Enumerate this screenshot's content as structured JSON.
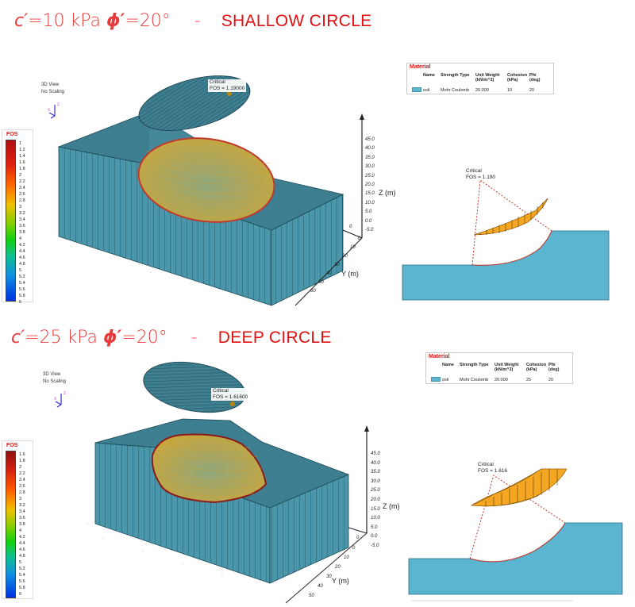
{
  "panels": [
    {
      "id": "shallow",
      "heading": {
        "cohesion_symbol": "c′",
        "cohesion_value": "=10 kPa",
        "phi_symbol": "ϕ′",
        "phi_value": "=20°",
        "separator": "-",
        "circle_type": "SHALLOW CIRCLE"
      },
      "view_labels": [
        "3D View",
        "No Scaling"
      ],
      "axes_triad": {
        "x": "x",
        "y": "y",
        "z": "z"
      },
      "fos_legend": {
        "title": "FOS",
        "ticks": [
          "1",
          "1.2",
          "1.4",
          "1.6",
          "1.8",
          "2",
          "2.2",
          "2.4",
          "2.6",
          "2.8",
          "3",
          "3.2",
          "3.4",
          "3.6",
          "3.8",
          "4",
          "4.2",
          "4.4",
          "4.6",
          "4.8",
          "5",
          "5.2",
          "5.4",
          "5.6",
          "5.8",
          "6"
        ]
      },
      "critical_3d": {
        "line1": "Critical",
        "line2": "FOS = 1.19000"
      },
      "z_axis": {
        "title": "Z (m)",
        "ticks": [
          "45.0",
          "40.0",
          "35.0",
          "30.0",
          "25.0",
          "20.0",
          "15.0",
          "10.0",
          "5.0",
          "0.0",
          "-5.0"
        ],
        "origin": "0"
      },
      "y_axis": {
        "title": "Y (m)",
        "ticks": [
          "0",
          "10",
          "20",
          "30",
          "40",
          "50",
          "60"
        ]
      },
      "material_table": {
        "title": "Material",
        "headers": [
          "Name",
          "Strength Type",
          "Unit Weight (kN/m^3)",
          "Cohesion (kPa)",
          "Phi (deg)"
        ],
        "rows": [
          {
            "name": "soil",
            "strength_type": "Mohr Coulomb",
            "unit_weight": "20.000",
            "cohesion": "10",
            "phi": "20",
            "color": "#5bb5d0"
          }
        ]
      },
      "section_2d": {
        "line1": "Critical",
        "line2": "FOS = 1.190"
      }
    },
    {
      "id": "deep",
      "heading": {
        "cohesion_symbol": "c′",
        "cohesion_value": "=25 kPa",
        "phi_symbol": "ϕ′",
        "phi_value": "=20°",
        "separator": "-",
        "circle_type": "DEEP CIRCLE"
      },
      "view_labels": [
        "3D View",
        "No Scaling"
      ],
      "axes_triad": {
        "x": "x",
        "y": "y",
        "z": "z"
      },
      "fos_legend": {
        "title": "FOS",
        "ticks": [
          "1.6",
          "1.8",
          "2",
          "2.2",
          "2.4",
          "2.6",
          "2.8",
          "3",
          "3.2",
          "3.4",
          "3.6",
          "3.8",
          "4",
          "4.2",
          "4.4",
          "4.6",
          "4.8",
          "5",
          "5.2",
          "5.4",
          "5.6",
          "5.8",
          "6"
        ]
      },
      "critical_3d": {
        "line1": "Critical",
        "line2": "FOS = 1.61600"
      },
      "z_axis": {
        "title": "Z (m)",
        "ticks": [
          "45.0",
          "40.0",
          "35.0",
          "30.0",
          "25.0",
          "20.0",
          "15.0",
          "10.0",
          "5.0",
          "0.0",
          "-5.0"
        ],
        "origin": "0"
      },
      "y_axis": {
        "title": "Y (m)",
        "ticks": [
          "0",
          "10",
          "20",
          "30",
          "40",
          "50"
        ]
      },
      "material_table": {
        "title": "Material",
        "headers": [
          "Name",
          "Strength Type",
          "Unit Weight (kN/m^3)",
          "Cohesion (kPa)",
          "Phi (deg)"
        ],
        "rows": [
          {
            "name": "soil",
            "strength_type": "Mohr Coulomb",
            "unit_weight": "20.000",
            "cohesion": "25",
            "phi": "20",
            "color": "#5bb5d0"
          }
        ]
      },
      "section_2d": {
        "line1": "Critical",
        "line2": "FOS = 1.616"
      }
    }
  ],
  "colors": {
    "heading_red": "#e83a3a",
    "soil_3d": "#4a97ab",
    "soil_3d_top": "#3d7e90",
    "soil_2d": "#5bb5d0",
    "slip_mass": "#f5a623",
    "slip_outline": "#c0392b"
  }
}
